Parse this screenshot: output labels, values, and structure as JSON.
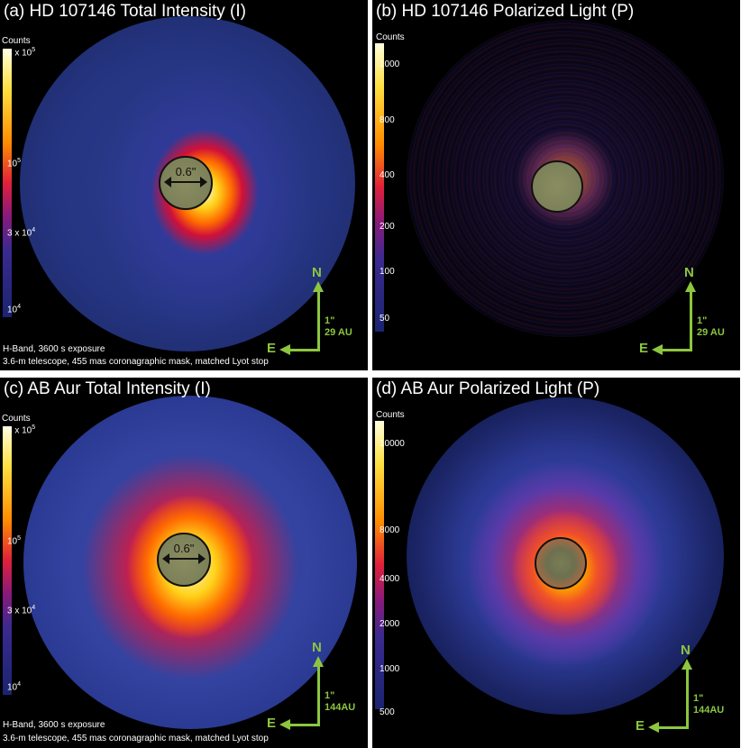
{
  "panels": {
    "a": {
      "title": "(a) HD 107146 Total Intensity (I)",
      "colorbar_title": "Counts",
      "colorbar_ticks": [
        "3 x 10",
        "10",
        "3 x 10",
        "10"
      ],
      "colorbar_exponents": [
        "5",
        "5",
        "4",
        "4"
      ],
      "mask_label": "0.6\"",
      "north": "N",
      "east": "E",
      "scale_arcsec": "1\"",
      "scale_au": "29 AU",
      "notes": [
        "H-Band, 3600 s exposure",
        "3.6-m telescope, 455 mas coronagraphic mask, matched Lyot stop"
      ]
    },
    "b": {
      "title": "(b) HD 107146 Polarized Light (P)",
      "colorbar_title": "Counts",
      "colorbar_ticks": [
        "1000",
        "800",
        "400",
        "200",
        "100",
        "50"
      ],
      "north": "N",
      "east": "E",
      "scale_arcsec": "1\"",
      "scale_au": "29 AU"
    },
    "c": {
      "title": "(c) AB Aur Total Intensity (I)",
      "colorbar_title": "Counts",
      "colorbar_ticks": [
        "3 x 10",
        "10",
        "3 x 10",
        "10"
      ],
      "colorbar_exponents": [
        "5",
        "5",
        "4",
        "4"
      ],
      "mask_label": "0.6\"",
      "north": "N",
      "east": "E",
      "scale_arcsec": "1\"",
      "scale_au": "144AU",
      "notes": [
        "H-Band, 3600 s exposure",
        "3.6-m telescope, 455 mas coronagraphic mask, matched Lyot stop"
      ]
    },
    "d": {
      "title": "(d) AB Aur Polarized Light (P)",
      "colorbar_title": "Counts",
      "colorbar_ticks": [
        "10000",
        "8000",
        "4000",
        "2000",
        "1000",
        "500"
      ],
      "north": "N",
      "east": "E",
      "scale_arcsec": "1\"",
      "scale_au": "144AU"
    }
  },
  "colors": {
    "compass": "#8cc63f",
    "background": "#000000",
    "disk_blue": "#2a3c8f",
    "mask_fill": "#7d8159"
  }
}
